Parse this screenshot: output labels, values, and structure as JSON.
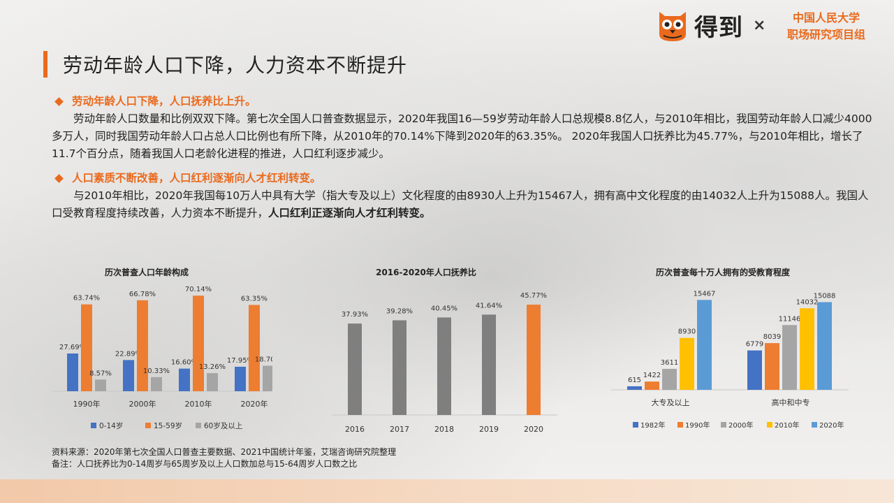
{
  "brand": {
    "logo_text": "得到",
    "times": "×",
    "partner_line1": "中国人民大学",
    "partner_line2": "职场研究项目组"
  },
  "title": "劳动年龄人口下降，人力资本不断提升",
  "section1": {
    "heading": "劳动年龄人口下降，人口抚养比上升。",
    "body": "劳动年龄人口数量和比例双双下降。第七次全国人口普查数据显示，2020年我国16—59岁劳动年龄人口总规模8.8亿人，与2010年相比，我国劳动年龄人口减少4000多万人，同时我国劳动年龄人口占总人口比例也有所下降，从2010年的70.14%下降到2020年的63.35%。 2020年我国人口抚养比为45.77%，与2010年相比，增长了11.7个百分点，随着我国人口老龄化进程的推进，人口红利逐步减少。"
  },
  "section2": {
    "heading": "人口素质不断改善，人口红利逐渐向人才红利转变。",
    "body": "与2010年相比，2020年我国每10万人中具有大学（指大专及以上）文化程度的由8930人上升为15467人，拥有高中文化程度的由14032人上升为15088人。我国人口受教育程度持续改善，人力资本不断提升，",
    "body_bold": "人口红利正逐渐向人才红利转变。"
  },
  "colors": {
    "accent": "#ea6a1d",
    "blue": "#4472c4",
    "orange": "#ed7d31",
    "gray": "#a5a5a5",
    "yellow": "#ffc000",
    "lightblue": "#5b9bd5"
  },
  "chart_data": [
    {
      "type": "bar",
      "title": "历次普查人口年龄构成",
      "categories": [
        "1990年",
        "2000年",
        "2010年",
        "2020年"
      ],
      "series": [
        {
          "name": "0-14岁",
          "values": [
            27.69,
            22.89,
            16.6,
            17.95
          ],
          "labels": [
            "27.69%",
            "22.89%",
            "16.60%",
            "17.95%"
          ],
          "color": "#4472c4"
        },
        {
          "name": "15-59岁",
          "values": [
            63.74,
            66.78,
            70.14,
            63.35
          ],
          "labels": [
            "63.74%",
            "66.78%",
            "70.14%",
            "63.35%"
          ],
          "color": "#ed7d31"
        },
        {
          "name": "60岁及以上",
          "values": [
            8.57,
            10.33,
            13.26,
            18.7
          ],
          "labels": [
            "8.57%",
            "10.33%",
            "13.26%",
            "18.70%"
          ],
          "color": "#a5a5a5"
        }
      ],
      "legend": "bottom"
    },
    {
      "type": "bar",
      "title": "2016-2020年人口抚养比",
      "categories": [
        "2016",
        "2017",
        "2018",
        "2019",
        "2020"
      ],
      "values": [
        37.93,
        39.28,
        40.45,
        41.64,
        45.77
      ],
      "labels": [
        "37.93%",
        "39.28%",
        "40.45%",
        "41.64%",
        "45.77%"
      ],
      "colors": [
        "#7f7f7f",
        "#7f7f7f",
        "#7f7f7f",
        "#7f7f7f",
        "#ed7d31"
      ]
    },
    {
      "type": "bar",
      "title": "历次普查每十万人拥有的受教育程度",
      "categories": [
        "大专及以上",
        "高中和中专"
      ],
      "series": [
        {
          "name": "1982年",
          "values": [
            615,
            6779
          ],
          "color": "#4472c4"
        },
        {
          "name": "1990年",
          "values": [
            1422,
            8039
          ],
          "color": "#ed7d31"
        },
        {
          "name": "2000年",
          "values": [
            3611,
            11146
          ],
          "color": "#a5a5a5"
        },
        {
          "name": "2010年",
          "values": [
            8930,
            14032
          ],
          "color": "#ffc000"
        },
        {
          "name": "2020年",
          "values": [
            15467,
            15088
          ],
          "color": "#5b9bd5"
        }
      ],
      "legend": "bottom"
    }
  ],
  "footnote": {
    "source": "资料来源：2020年第七次全国人口普查主要数据、2021中国统计年鉴，艾瑞咨询研究院整理",
    "note": "备注：人口抚养比为0-14周岁与65周岁及以上人口数加总与15-64周岁人口数之比"
  }
}
